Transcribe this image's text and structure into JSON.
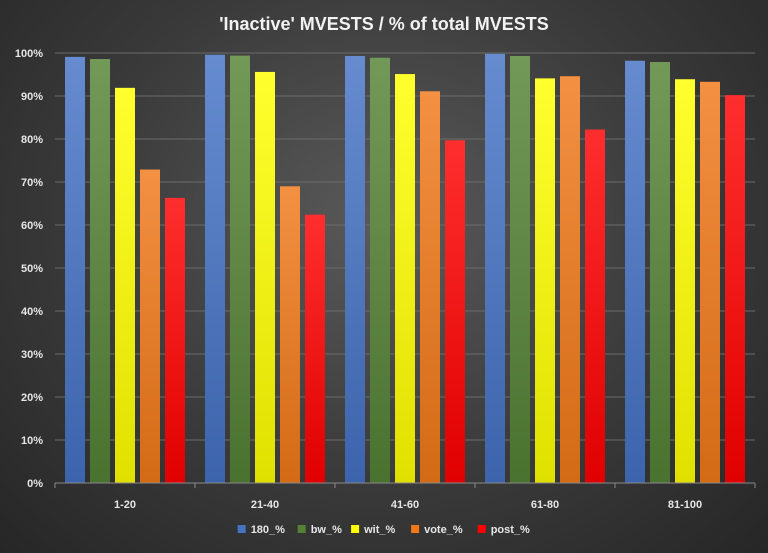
{
  "chart_data": {
    "type": "bar",
    "title": "'Inactive'  MVESTS  / % of total  MVESTS",
    "xlabel": "",
    "ylabel": "",
    "ylim": [
      0,
      100
    ],
    "y_tick_values": [
      0,
      10,
      20,
      30,
      40,
      50,
      60,
      70,
      80,
      90,
      100
    ],
    "y_tick_labels": [
      "0%",
      "10%",
      "20%",
      "30%",
      "40%",
      "50%",
      "60%",
      "70%",
      "80%",
      "90%",
      "100%"
    ],
    "grid": true,
    "legend_position": "bottom",
    "categories": [
      "1-20",
      "21-40",
      "41-60",
      "61-80",
      "81-100"
    ],
    "series": [
      {
        "name": "180_%",
        "color": "#4472c4",
        "values": [
          99.1,
          99.6,
          99.3,
          99.8,
          98.2
        ]
      },
      {
        "name": "bw_%",
        "color": "#548235",
        "values": [
          98.6,
          99.4,
          98.9,
          99.3,
          97.9
        ]
      },
      {
        "name": "wit_%",
        "color": "#ffff00",
        "values": [
          91.9,
          95.6,
          95.1,
          94.1,
          93.9
        ]
      },
      {
        "name": "vote_%",
        "color": "#f07818",
        "values": [
          72.9,
          69.0,
          91.1,
          94.6,
          93.3
        ]
      },
      {
        "name": "post_%",
        "color": "#ff0000",
        "values": [
          66.3,
          62.4,
          79.7,
          82.2,
          90.2
        ]
      }
    ]
  }
}
